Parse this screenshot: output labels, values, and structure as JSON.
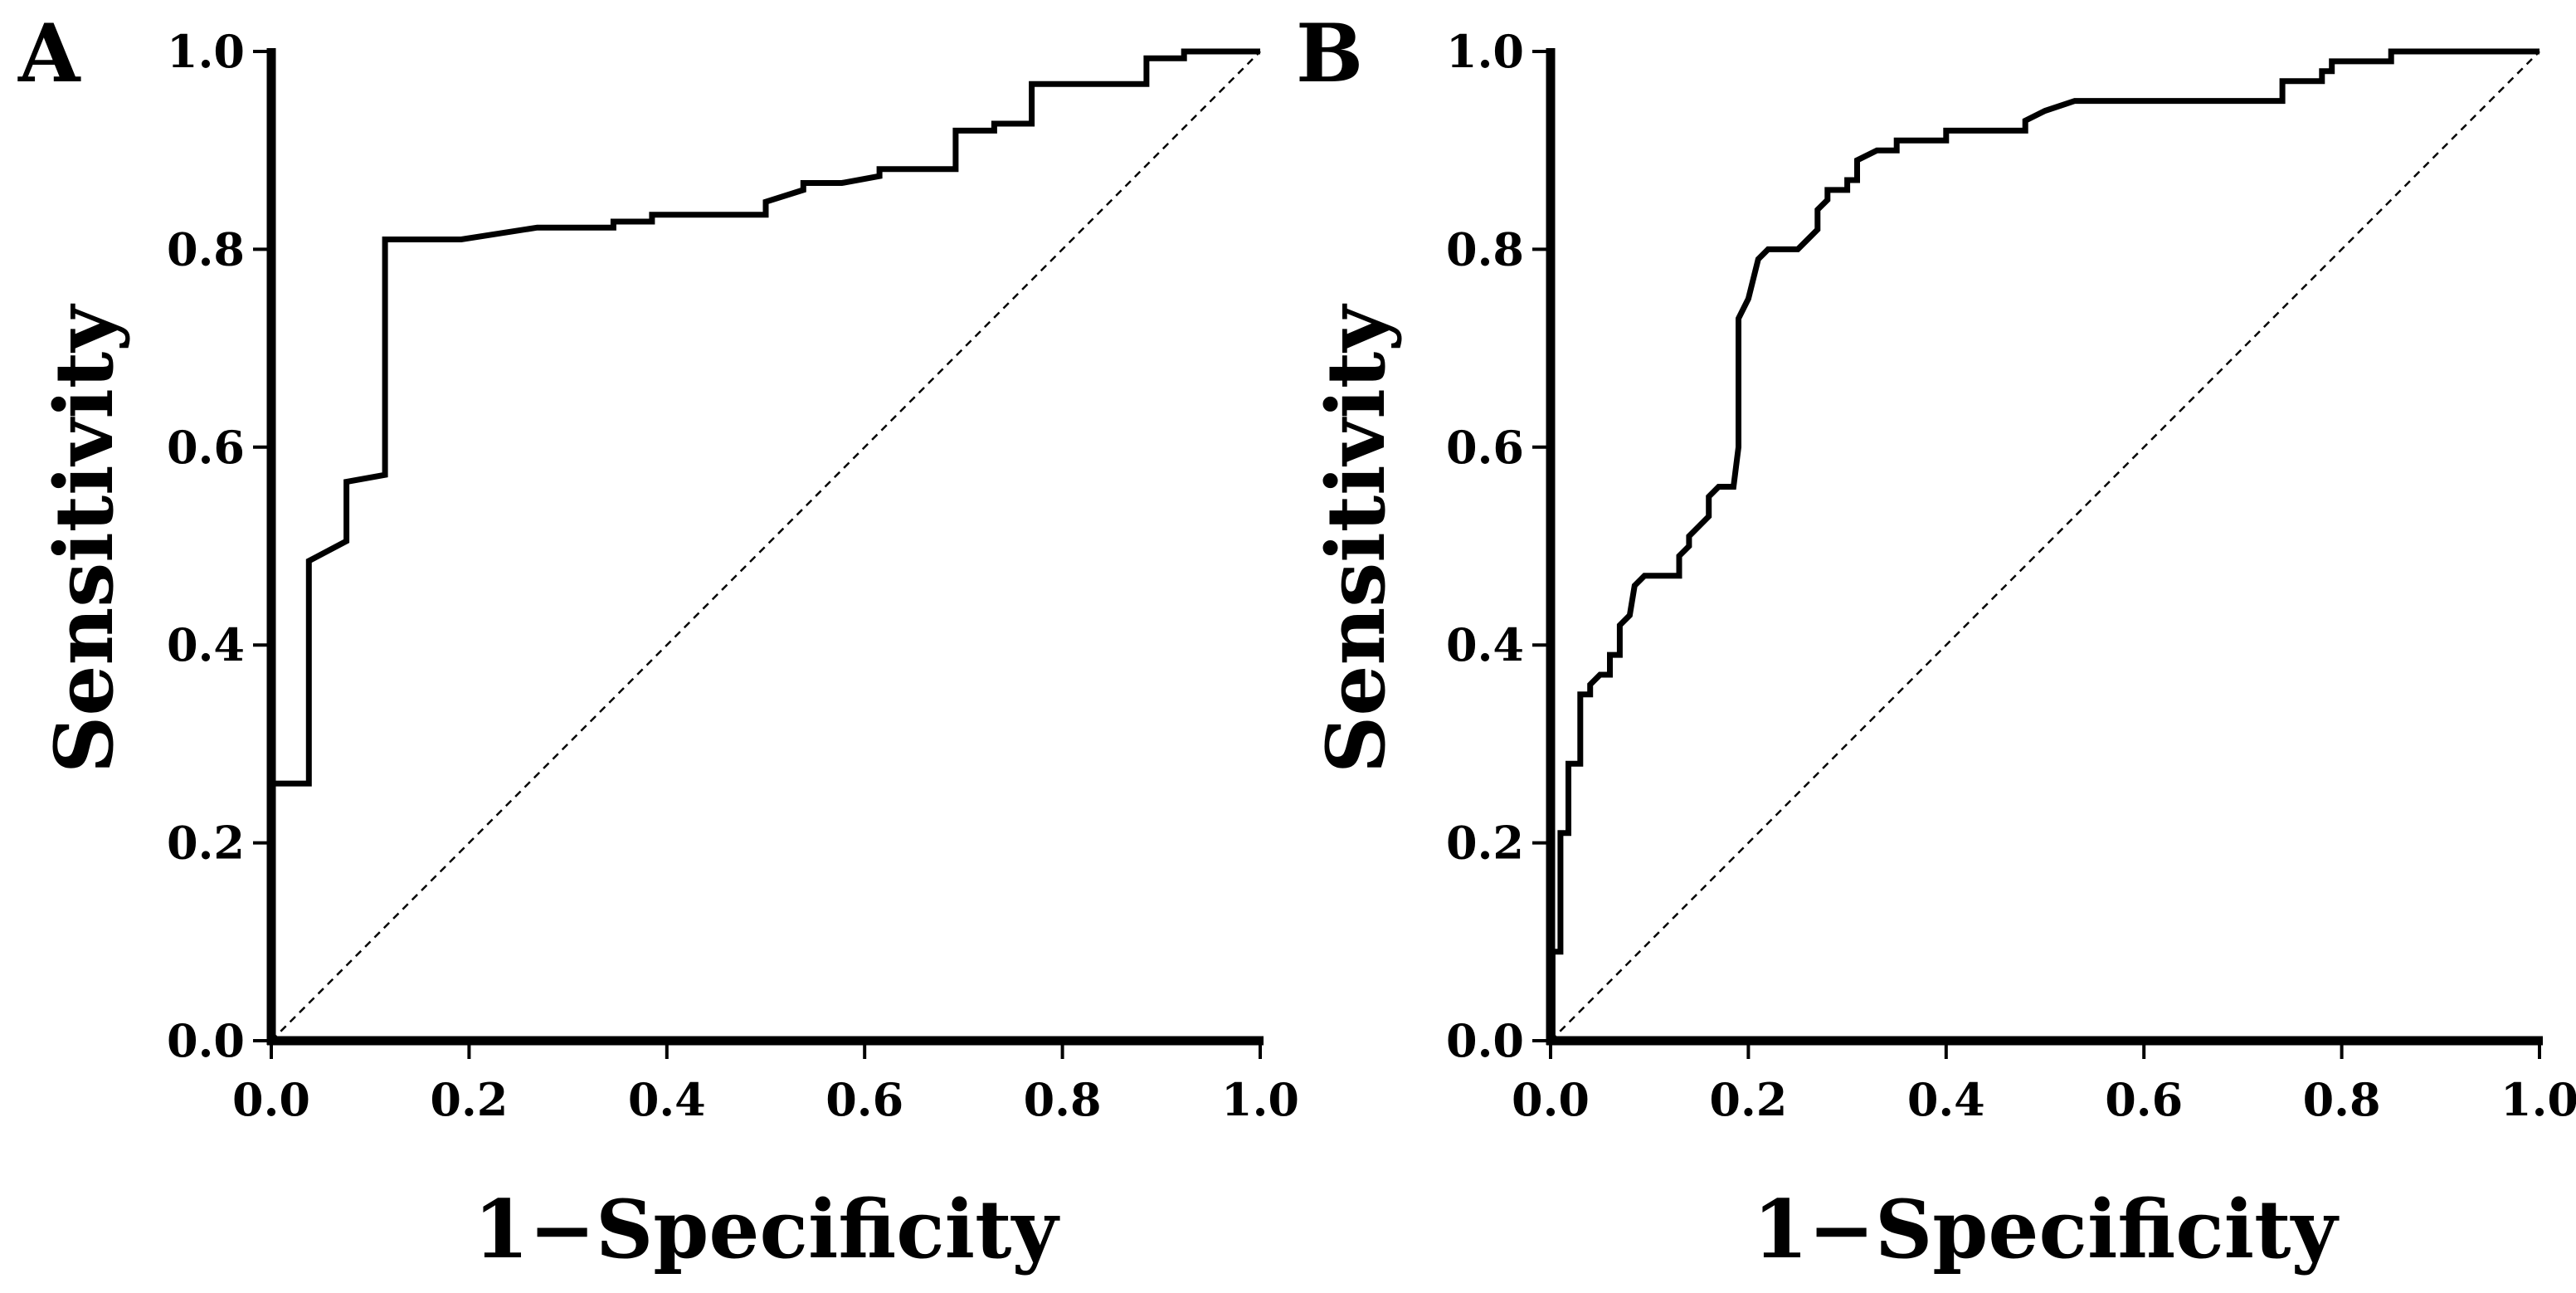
{
  "chart_data": [
    {
      "type": "line",
      "panel_label": "A",
      "xlabel": "1−Specificity",
      "ylabel": "Sensitivity",
      "xlim": [
        0,
        1
      ],
      "ylim": [
        0,
        1
      ],
      "x_ticks": [
        "0.0",
        "0.2",
        "0.4",
        "0.6",
        "0.8",
        "1.0"
      ],
      "y_ticks": [
        "0.0",
        "0.2",
        "0.4",
        "0.6",
        "0.8",
        "1.0"
      ],
      "series": [
        {
          "name": "ROC curve",
          "style": "solid",
          "x": [
            0,
            0,
            0.038,
            0.038,
            0.076,
            0.076,
            0.115,
            0.115,
            0.192,
            0.269,
            0.346,
            0.346,
            0.385,
            0.385,
            0.5,
            0.5,
            0.538,
            0.538,
            0.577,
            0.615,
            0.615,
            0.692,
            0.692,
            0.731,
            0.731,
            0.769,
            0.769,
            0.885,
            0.885,
            0.923,
            0.923,
            1.0
          ],
          "y": [
            0,
            0.26,
            0.26,
            0.485,
            0.505,
            0.565,
            0.572,
            0.81,
            0.81,
            0.822,
            0.822,
            0.828,
            0.828,
            0.835,
            0.835,
            0.848,
            0.86,
            0.867,
            0.867,
            0.874,
            0.881,
            0.881,
            0.92,
            0.92,
            0.927,
            0.927,
            0.967,
            0.967,
            0.993,
            0.993,
            1.0,
            1.0
          ]
        },
        {
          "name": "Reference line",
          "style": "dashed",
          "x": [
            0,
            1
          ],
          "y": [
            0,
            1
          ]
        }
      ]
    },
    {
      "type": "line",
      "panel_label": "B",
      "xlabel": "1−Specificity",
      "ylabel": "Sensitivity",
      "xlim": [
        0,
        1
      ],
      "ylim": [
        0,
        1
      ],
      "x_ticks": [
        "0.0",
        "0.2",
        "0.4",
        "0.6",
        "0.8",
        "1.0"
      ],
      "y_ticks": [
        "0.0",
        "0.2",
        "0.4",
        "0.6",
        "0.8",
        "1.0"
      ],
      "series": [
        {
          "name": "ROC curve",
          "style": "solid",
          "x": [
            0,
            0.002,
            0.002,
            0.01,
            0.01,
            0.018,
            0.018,
            0.03,
            0.03,
            0.04,
            0.04,
            0.05,
            0.06,
            0.06,
            0.07,
            0.07,
            0.08,
            0.085,
            0.085,
            0.095,
            0.095,
            0.13,
            0.13,
            0.14,
            0.14,
            0.16,
            0.16,
            0.17,
            0.175,
            0.185,
            0.19,
            0.19,
            0.2,
            0.21,
            0.22,
            0.23,
            0.25,
            0.26,
            0.27,
            0.27,
            0.28,
            0.28,
            0.3,
            0.3,
            0.31,
            0.31,
            0.33,
            0.33,
            0.35,
            0.35,
            0.37,
            0.4,
            0.4,
            0.48,
            0.48,
            0.5,
            0.5,
            0.53,
            0.53,
            0.74,
            0.74,
            0.76,
            0.78,
            0.78,
            0.79,
            0.79,
            0.81,
            0.85,
            0.85,
            1.0
          ],
          "y": [
            0,
            0,
            0.09,
            0.09,
            0.21,
            0.21,
            0.28,
            0.28,
            0.35,
            0.35,
            0.36,
            0.37,
            0.37,
            0.39,
            0.39,
            0.42,
            0.43,
            0.46,
            0.46,
            0.47,
            0.47,
            0.47,
            0.49,
            0.5,
            0.51,
            0.53,
            0.55,
            0.56,
            0.56,
            0.56,
            0.6,
            0.73,
            0.75,
            0.79,
            0.8,
            0.8,
            0.8,
            0.81,
            0.82,
            0.84,
            0.85,
            0.86,
            0.86,
            0.87,
            0.87,
            0.89,
            0.9,
            0.9,
            0.9,
            0.91,
            0.91,
            0.91,
            0.92,
            0.92,
            0.93,
            0.94,
            0.94,
            0.95,
            0.95,
            0.95,
            0.97,
            0.97,
            0.97,
            0.98,
            0.98,
            0.99,
            0.99,
            0.99,
            1.0,
            1.0
          ]
        },
        {
          "name": "Reference line",
          "style": "dashed",
          "x": [
            0,
            1
          ],
          "y": [
            0,
            1
          ]
        }
      ]
    }
  ]
}
